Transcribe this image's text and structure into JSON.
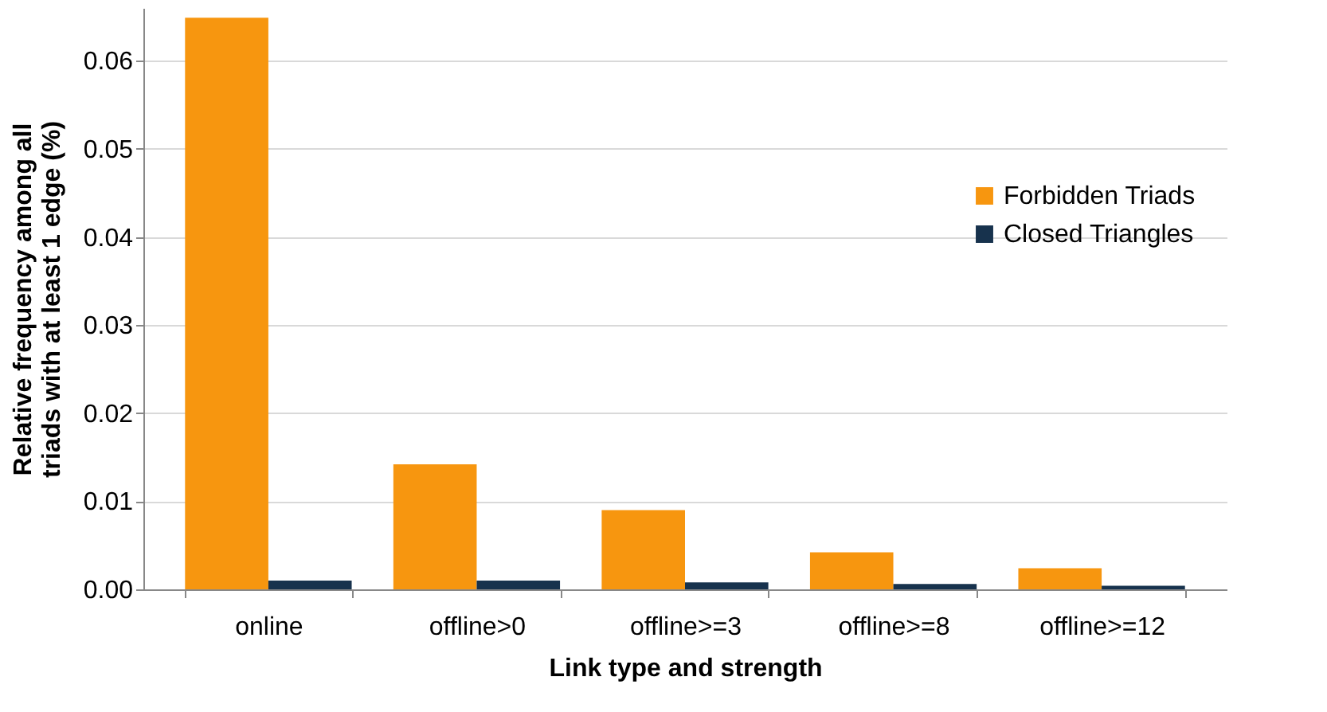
{
  "chart_data": {
    "type": "bar",
    "xlabel": "Link type and strength",
    "ylabel": "Relative frequency among all\ntriads with at least 1 edge  (%)",
    "categories": [
      "online",
      "offline>0",
      "offline>=3",
      "offline>=8",
      "offline>=12"
    ],
    "series": [
      {
        "name": "Forbidden Triads",
        "color": "#f7960f",
        "values": [
          0.0649,
          0.0142,
          0.009,
          0.0042,
          0.0024
        ]
      },
      {
        "name": "Closed Triangles",
        "color": "#17324d",
        "values": [
          0.001,
          0.001,
          0.0008,
          0.0006,
          0.0004
        ]
      }
    ],
    "ylim": [
      0,
      0.066
    ],
    "yticks": [
      {
        "value": 0,
        "label": "0.00"
      },
      0.01,
      0.02,
      0.03,
      0.04,
      0.05,
      0.06
    ],
    "grid": "y",
    "legend": "right"
  }
}
